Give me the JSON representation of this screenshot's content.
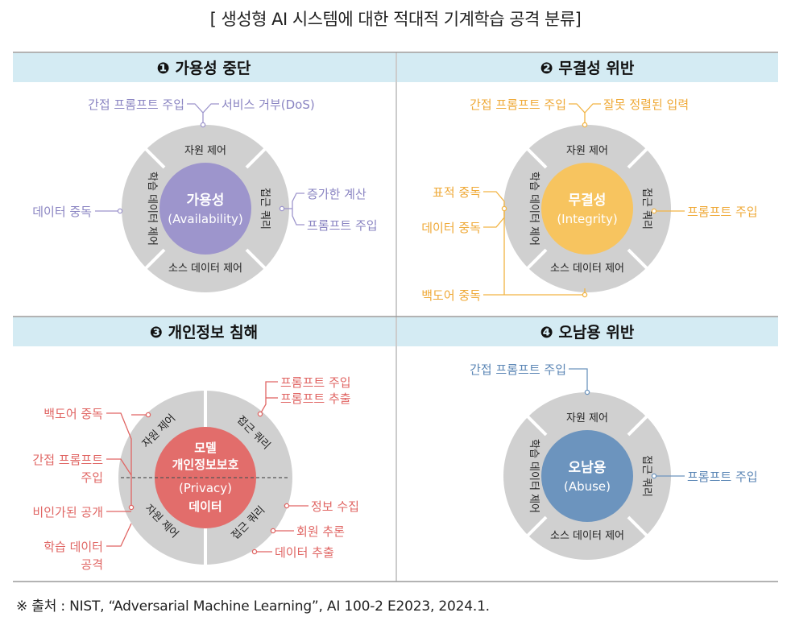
{
  "title": "[ 생성형 AI 시스템에 대한 적대적 기계학습 공격 분류]",
  "source": "※ 출처 : NIST, “Adversarial Machine Learning”, AI 100-2 E2023, 2024.1.",
  "colors": {
    "header_bg": "#d4ebf3",
    "ring": "#d0d0d0",
    "availability": "#9d95cc",
    "integrity": "#f7c45f",
    "privacy": "#e26d6b",
    "abuse": "#6c94be",
    "avail_label": "#8a84c2",
    "integ_label": "#efa937",
    "priv_label": "#e06563",
    "abuse_label": "#5b86b5"
  },
  "panels": {
    "availability": {
      "header": "❶ 가용성 중단",
      "center_title": "가용성",
      "center_sub": "(Availability)",
      "seg_top": "자원 제어",
      "seg_right": "접근 쿼리",
      "seg_bottom": "소스 데이터 제어",
      "seg_left": "학습 데이터 제어",
      "labels": {
        "indirect": "간접 프롬프트 주입",
        "dos": "서비스 거부(DoS)",
        "poison": "데이터 중독",
        "increased": "증가한 계산",
        "prompt": "프롬프트 주입"
      }
    },
    "integrity": {
      "header": "❷ 무결성 위반",
      "center_title": "무결성",
      "center_sub": "(Integrity)",
      "seg_top": "자원 제어",
      "seg_right": "접근 쿼리",
      "seg_bottom": "소스 데이터 제어",
      "seg_left": "학습 데이터 제어",
      "labels": {
        "indirect": "간접 프롬프트 주입",
        "misaligned": "잘못 정렬된 입력",
        "targeted": "표적 중독",
        "poison": "데이터 중독",
        "backdoor": "백도어 중독",
        "prompt": "프롬프트 주입"
      }
    },
    "privacy": {
      "header": "❸ 개인정보 침해",
      "center_line1": "모델",
      "center_line2": "개인정보보호",
      "center_line3": "(Privacy)",
      "center_line4": "데이터",
      "seg_tl": "자원 제어",
      "seg_tr": "접근 쿼리",
      "seg_bl": "자원 제어",
      "seg_br": "접근 쿼리",
      "labels": {
        "prompt": "프롬프트 주입",
        "extract": "프롬프트 추출",
        "backdoor": "백도어 중독",
        "indirect1": "간접 프롬프트",
        "indirect2": "주입",
        "disclosure": "비인가된 공개",
        "training1": "학습 데이터",
        "training2": "공격",
        "info": "정보 수집",
        "member": "회원 추론",
        "dataext": "데이터 추출"
      }
    },
    "abuse": {
      "header": "❹ 오남용 위반",
      "center_title": "오남용",
      "center_sub": "(Abuse)",
      "seg_top": "자원 제어",
      "seg_right": "접근 쿼리",
      "seg_bottom": "소스 데이터 제어",
      "seg_left": "학습 데이터 제어",
      "labels": {
        "indirect": "간접 프롬프트 주입",
        "prompt": "프롬프트 주입"
      }
    }
  }
}
